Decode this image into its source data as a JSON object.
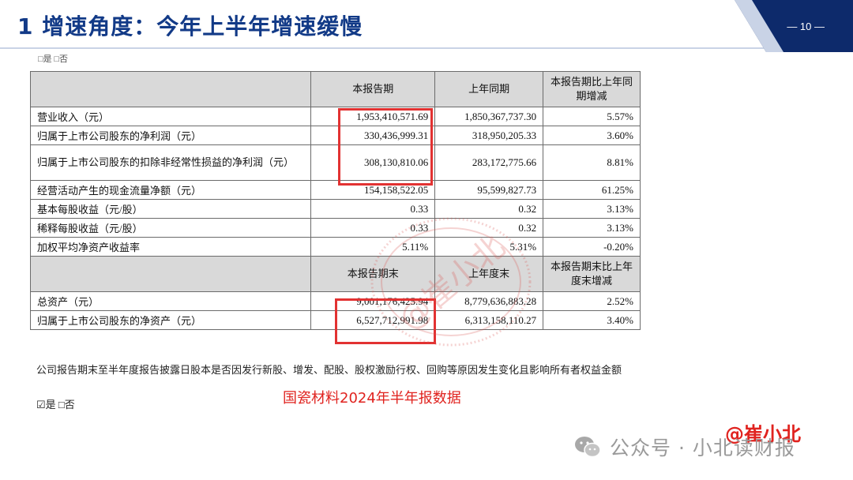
{
  "slide": {
    "title": "1 增速角度：今年上半年增速缓慢",
    "page_number": "— 10 —"
  },
  "doc": {
    "cropped_top_text": "□是 □否",
    "table": {
      "header1": [
        "",
        "本报告期",
        "上年同期",
        "本报告期比上年同期增减"
      ],
      "rows1": [
        [
          "营业收入（元）",
          "1,953,410,571.69",
          "1,850,367,737.30",
          "5.57%"
        ],
        [
          "归属于上市公司股东的净利润（元）",
          "330,436,999.31",
          "318,950,205.33",
          "3.60%"
        ],
        [
          "归属于上市公司股东的扣除非经常性损益的净利润（元）",
          "308,130,810.06",
          "283,172,775.66",
          "8.81%"
        ],
        [
          "经营活动产生的现金流量净额（元）",
          "154,158,522.05",
          "95,599,827.73",
          "61.25%"
        ],
        [
          "基本每股收益（元/股）",
          "0.33",
          "0.32",
          "3.13%"
        ],
        [
          "稀释每股收益（元/股）",
          "0.33",
          "0.32",
          "3.13%"
        ],
        [
          "加权平均净资产收益率",
          "5.11%",
          "5.31%",
          "-0.20%"
        ]
      ],
      "header2": [
        "",
        "本报告期末",
        "上年度末",
        "本报告期末比上年度末增减"
      ],
      "rows2": [
        [
          "总资产（元）",
          "9,001,176,425.94",
          "8,779,636,883.28",
          "2.52%"
        ],
        [
          "归属于上市公司股东的净资产（元）",
          "6,527,712,991.98",
          "6,313,158,110.27",
          "3.40%"
        ]
      ]
    },
    "note": "公司报告期末至半年度报告披露日股本是否因发行新股、增发、配股、股权激励行权、回购等原因发生变化且影响所有者权益金额",
    "choice": "☑是 □否"
  },
  "stamp_text": "@崔小北",
  "caption": "国瓷材料2024年半年报数据",
  "author_tag": "@崔小北",
  "watermark": "公众号 · 小北读财报",
  "colors": {
    "title": "#123a87",
    "accent_red": "#e0231f",
    "header_bg": "#d9d9d9",
    "corner_navy": "#0d2a6b"
  },
  "icons": {
    "wechat": "wechat-icon"
  }
}
